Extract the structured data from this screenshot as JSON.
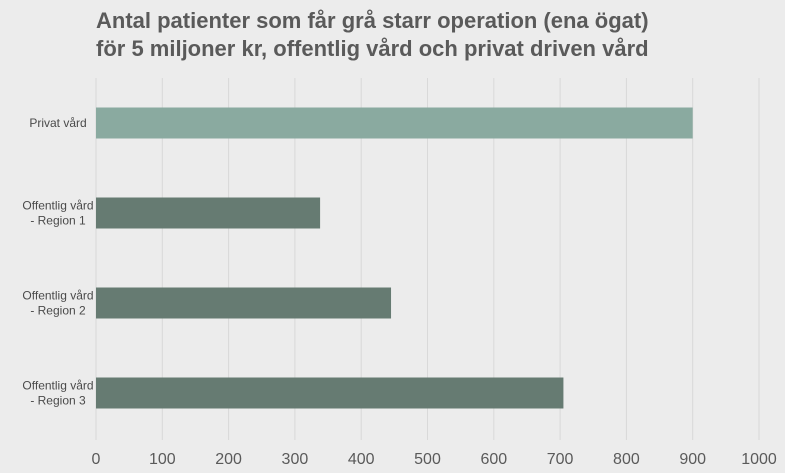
{
  "chart_data": {
    "type": "bar",
    "orientation": "horizontal",
    "title_lines": [
      "Antal patienter som får grå starr operation (ena ögat)",
      "för 5 miljoner kr, offentlig vård och privat driven vård"
    ],
    "categories": [
      [
        "Privat vård"
      ],
      [
        "Offentlig vård",
        "- Region 1"
      ],
      [
        "Offentlig vård",
        "- Region 2"
      ],
      [
        "Offentlig vård",
        "- Region 3"
      ]
    ],
    "values": [
      900,
      338,
      445,
      705
    ],
    "bar_colors": [
      "#8aaaa0",
      "#667b72",
      "#667b72",
      "#667b72"
    ],
    "xlim": [
      0,
      1000
    ],
    "xticks": [
      0,
      100,
      200,
      300,
      400,
      500,
      600,
      700,
      800,
      900,
      1000
    ],
    "grid": "vertical",
    "legend": "none",
    "xlabel": "",
    "ylabel": ""
  }
}
